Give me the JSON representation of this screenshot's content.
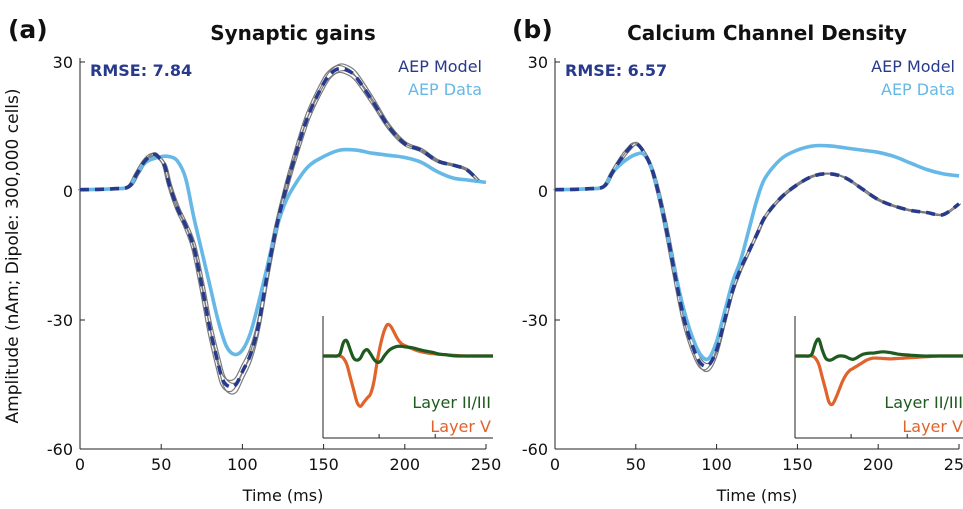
{
  "figure": {
    "ylabel": "Amplitude (nAm; Dipole: 300,000 cells)",
    "colors": {
      "model": "#283A8C",
      "data": "#66B8E6",
      "trial": "#7a7a7a",
      "layer23": "#1F5A1F",
      "layer5": "#E0632B"
    }
  },
  "chart_data": [
    {
      "type": "line",
      "panel_label": "(a)",
      "title": "Synaptic gains",
      "xlabel": "Time (ms)",
      "xlim": [
        0,
        250
      ],
      "ylim": [
        -60,
        30
      ],
      "xticks": [
        "0",
        "50",
        "100",
        "150",
        "200",
        "250"
      ],
      "yticks": [
        "30",
        "0",
        "-30",
        "-60"
      ],
      "rmse": "RMSE: 7.84",
      "legend": [
        "AEP Model",
        "AEP Data"
      ],
      "series": [
        {
          "name": "AEP Model",
          "x": [
            0,
            20,
            30,
            35,
            40,
            45,
            48,
            52,
            55,
            60,
            65,
            70,
            75,
            80,
            85,
            88,
            92,
            96,
            100,
            105,
            110,
            115,
            120,
            125,
            130,
            140,
            150,
            155,
            160,
            165,
            170,
            180,
            190,
            200,
            210,
            220,
            230,
            238,
            245
          ],
          "y": [
            0.3,
            0.5,
            1,
            4,
            7,
            8.5,
            8,
            6,
            1.5,
            -4,
            -8,
            -13,
            -22,
            -32,
            -40,
            -44,
            -45.5,
            -45,
            -42,
            -38,
            -31,
            -20,
            -10,
            -2,
            5,
            17,
            25,
            27.5,
            28.5,
            28,
            26.5,
            21,
            15,
            11,
            9.5,
            7,
            6,
            5,
            2.5
          ]
        },
        {
          "name": "AEP Data",
          "x": [
            0,
            20,
            30,
            35,
            40,
            45,
            50,
            55,
            60,
            65,
            70,
            75,
            80,
            85,
            90,
            95,
            100,
            105,
            110,
            115,
            120,
            125,
            130,
            140,
            150,
            160,
            170,
            180,
            190,
            200,
            210,
            220,
            230,
            240,
            250
          ],
          "y": [
            0.3,
            0.5,
            1,
            4,
            6.5,
            7.5,
            8,
            8,
            7,
            3,
            -6,
            -14,
            -22,
            -30,
            -36,
            -38,
            -37,
            -33,
            -26,
            -18,
            -10,
            -4,
            0,
            5.5,
            8,
            9.5,
            9.5,
            8.8,
            8.3,
            7.8,
            6.7,
            4.5,
            3,
            2.5,
            2
          ]
        }
      ],
      "inset": {
        "legend": [
          "Layer II/III",
          "Layer V"
        ],
        "series": [
          {
            "name": "Layer II/III",
            "x": [
              0,
              15,
              20,
              25,
              30,
              35,
              40,
              45,
              50,
              55,
              60,
              65,
              70,
              75,
              80,
              85,
              90,
              95,
              100,
              105,
              110,
              115,
              120,
              130,
              140,
              150,
              160,
              170,
              180,
              190,
              200,
              210,
              220,
              230,
              240,
              250
            ],
            "y": [
              0,
              0,
              0,
              0.5,
              3.2,
              3.6,
              1.5,
              -0.5,
              -1,
              -0.5,
              1,
              1.5,
              0.5,
              -0.8,
              -1.5,
              -1.2,
              0,
              1,
              1.7,
              2.1,
              2.3,
              2.3,
              2.2,
              2,
              1.6,
              1.2,
              0.9,
              0.5,
              0.3,
              0.1,
              0,
              0,
              0,
              0,
              0,
              0
            ]
          },
          {
            "name": "Layer V",
            "x": [
              0,
              15,
              20,
              25,
              30,
              35,
              40,
              45,
              50,
              55,
              60,
              65,
              70,
              75,
              80,
              85,
              90,
              95,
              100,
              105,
              110,
              115,
              120,
              130,
              140,
              150,
              160,
              170,
              180,
              190,
              200,
              210,
              220,
              230,
              240,
              250
            ],
            "y": [
              0,
              0,
              0,
              0,
              -0.5,
              -2,
              -5,
              -8,
              -11,
              -12,
              -11,
              -10,
              -9,
              -6,
              -1,
              3,
              6,
              7.5,
              7,
              5.5,
              4,
              3,
              2.5,
              1.8,
              1.2,
              0.8,
              0.6,
              0.4,
              0.3,
              0.2,
              0.1,
              0,
              0,
              0,
              0,
              0
            ]
          }
        ]
      }
    },
    {
      "type": "line",
      "panel_label": "(b)",
      "title": "Calcium Channel Density",
      "xlabel": "Time (ms)",
      "xlim": [
        0,
        250
      ],
      "ylim": [
        -60,
        30
      ],
      "xticks": [
        "0",
        "50",
        "100",
        "150",
        "200",
        "250"
      ],
      "yticks": [
        "30",
        "0",
        "-30",
        "-60"
      ],
      "rmse": "RMSE: 6.57",
      "legend": [
        "AEP Model",
        "AEP Data"
      ],
      "series": [
        {
          "name": "AEP Model",
          "x": [
            0,
            20,
            30,
            35,
            40,
            45,
            50,
            55,
            60,
            65,
            70,
            75,
            80,
            85,
            90,
            95,
            100,
            105,
            110,
            115,
            120,
            125,
            130,
            140,
            150,
            160,
            170,
            180,
            190,
            200,
            210,
            220,
            230,
            240,
            250
          ],
          "y": [
            0.3,
            0.5,
            1,
            4,
            7,
            9.5,
            11,
            9,
            5,
            -2,
            -11,
            -21,
            -30,
            -36,
            -40,
            -40.5,
            -37,
            -30,
            -23,
            -18,
            -14,
            -10,
            -6,
            -1.5,
            1.5,
            3.5,
            4,
            3,
            0.5,
            -2,
            -3.5,
            -4.5,
            -5,
            -5.5,
            -3
          ]
        },
        {
          "name": "AEP Data",
          "x": [
            0,
            20,
            30,
            35,
            40,
            45,
            50,
            55,
            60,
            65,
            70,
            75,
            80,
            85,
            90,
            95,
            100,
            105,
            110,
            115,
            120,
            125,
            130,
            140,
            150,
            160,
            170,
            180,
            190,
            200,
            210,
            220,
            230,
            240,
            250
          ],
          "y": [
            0.3,
            0.5,
            1,
            4,
            6,
            7.5,
            8.5,
            8.5,
            5,
            -2,
            -11,
            -20,
            -28,
            -34,
            -38,
            -39,
            -35,
            -28,
            -21,
            -16,
            -9,
            -2,
            3,
            7.5,
            9.5,
            10.5,
            10.5,
            10,
            9.5,
            9,
            8,
            6.5,
            5,
            4,
            3.5
          ]
        }
      ],
      "inset": {
        "legend": [
          "Layer II/III",
          "Layer V"
        ],
        "series": [
          {
            "name": "Layer II/III",
            "x": [
              0,
              15,
              20,
              25,
              30,
              35,
              40,
              45,
              50,
              55,
              60,
              65,
              70,
              75,
              80,
              85,
              90,
              95,
              100,
              105,
              110,
              115,
              120,
              130,
              140,
              150,
              160,
              170,
              180,
              190,
              200,
              210,
              220,
              230,
              240,
              250
            ],
            "y": [
              0,
              0,
              0,
              0.5,
              3,
              4,
              1.5,
              -0.5,
              -1,
              -0.8,
              -0.3,
              0,
              0,
              -0.2,
              -0.6,
              -0.8,
              -0.5,
              0,
              0.4,
              0.6,
              0.7,
              0.7,
              0.8,
              1,
              0.8,
              0.5,
              0.3,
              0.2,
              0.1,
              0,
              0,
              0,
              0,
              0,
              0,
              0
            ]
          },
          {
            "name": "Layer V",
            "x": [
              0,
              15,
              20,
              25,
              30,
              35,
              40,
              45,
              50,
              55,
              60,
              65,
              70,
              75,
              80,
              85,
              90,
              95,
              100,
              105,
              110,
              115,
              120,
              130,
              140,
              150,
              160,
              170,
              180,
              190,
              200,
              210,
              220,
              230,
              240,
              250
            ],
            "y": [
              0,
              0,
              0,
              0,
              -0.5,
              -2,
              -5,
              -8,
              -11,
              -11.5,
              -10,
              -8,
              -6,
              -4.5,
              -3.5,
              -3,
              -2.5,
              -2,
              -1.5,
              -1,
              -0.7,
              -0.5,
              -0.5,
              -0.6,
              -0.7,
              -0.6,
              -0.5,
              -0.4,
              -0.3,
              -0.2,
              -0.1,
              0,
              0,
              0,
              0,
              0
            ]
          }
        ]
      }
    }
  ]
}
